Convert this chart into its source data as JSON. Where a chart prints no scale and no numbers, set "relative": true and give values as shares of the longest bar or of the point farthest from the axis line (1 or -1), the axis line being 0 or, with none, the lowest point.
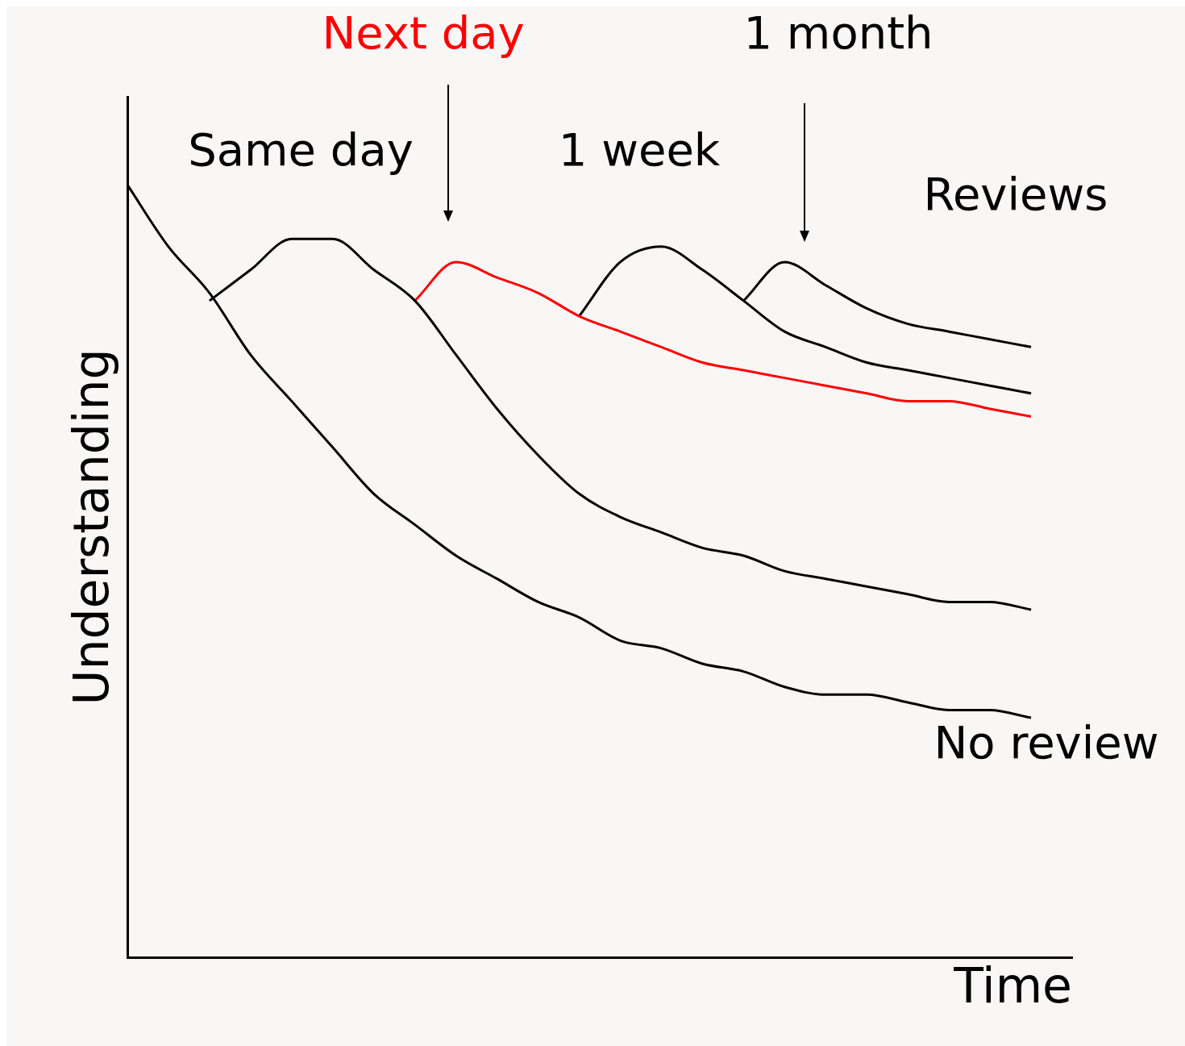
{
  "chart_data": {
    "type": "line",
    "relative": true,
    "xlabel": "Time",
    "ylabel": "Understanding",
    "legend": false,
    "tick_labels": false,
    "categories": [
      null,
      null,
      null,
      null,
      null,
      null,
      null,
      null,
      null,
      null,
      null,
      null,
      null,
      null,
      null,
      null,
      null,
      null,
      null,
      null,
      null,
      null,
      null,
      null
    ],
    "series": [
      {
        "name": "No review",
        "color": "#000000",
        "values": [
          1.0,
          0.92,
          0.86,
          0.78,
          0.72,
          0.66,
          0.6,
          0.56,
          0.52,
          0.49,
          0.46,
          0.44,
          0.41,
          0.4,
          0.38,
          0.37,
          0.35,
          0.34,
          0.34,
          0.33,
          0.32,
          0.32,
          0.31,
          null
        ]
      },
      {
        "color": "#000000",
        "values": [
          null,
          null,
          0.85,
          0.89,
          0.93,
          0.93,
          0.89,
          0.85,
          0.78,
          0.71,
          0.65,
          0.6,
          0.57,
          0.55,
          0.53,
          0.52,
          0.5,
          0.49,
          0.48,
          0.47,
          0.46,
          0.46,
          0.45,
          null
        ]
      },
      {
        "name": "Next day",
        "color": "#ff0000",
        "values": [
          null,
          null,
          null,
          null,
          null,
          null,
          null,
          0.85,
          0.9,
          0.88,
          0.86,
          0.83,
          0.81,
          0.79,
          0.77,
          0.76,
          0.75,
          0.74,
          0.73,
          0.72,
          0.72,
          0.71,
          0.7,
          null
        ]
      },
      {
        "color": "#000000",
        "values": [
          null,
          null,
          null,
          null,
          null,
          null,
          null,
          null,
          null,
          null,
          null,
          0.83,
          0.9,
          0.92,
          0.89,
          0.85,
          0.81,
          0.79,
          0.77,
          0.76,
          0.75,
          0.74,
          0.73,
          null
        ]
      },
      {
        "color": "#000000",
        "values": [
          null,
          null,
          null,
          null,
          null,
          null,
          null,
          null,
          null,
          null,
          null,
          null,
          null,
          null,
          null,
          0.85,
          0.9,
          0.87,
          0.84,
          0.82,
          0.81,
          0.8,
          0.79,
          null
        ]
      }
    ],
    "annotations": [
      "Same day",
      "1 week",
      "1 month",
      "Reviews"
    ]
  }
}
